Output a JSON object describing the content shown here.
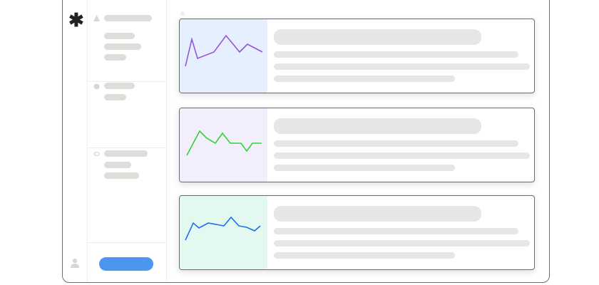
{
  "colors": {
    "accent_button": "#4d96f0",
    "card_backgrounds": [
      "#e6effd",
      "#f3eefb",
      "#e3f8ee"
    ],
    "line_colors": [
      "#9257d8",
      "#2fd52f",
      "#1f6ff0"
    ]
  },
  "icons": {
    "logo": "asterisk-icon",
    "sections": [
      "triangle-icon",
      "gear-icon",
      "tag-icon"
    ],
    "user": "user-icon"
  },
  "cards": [
    {
      "label": "card-1"
    },
    {
      "label": "card-2"
    },
    {
      "label": "card-3"
    }
  ]
}
